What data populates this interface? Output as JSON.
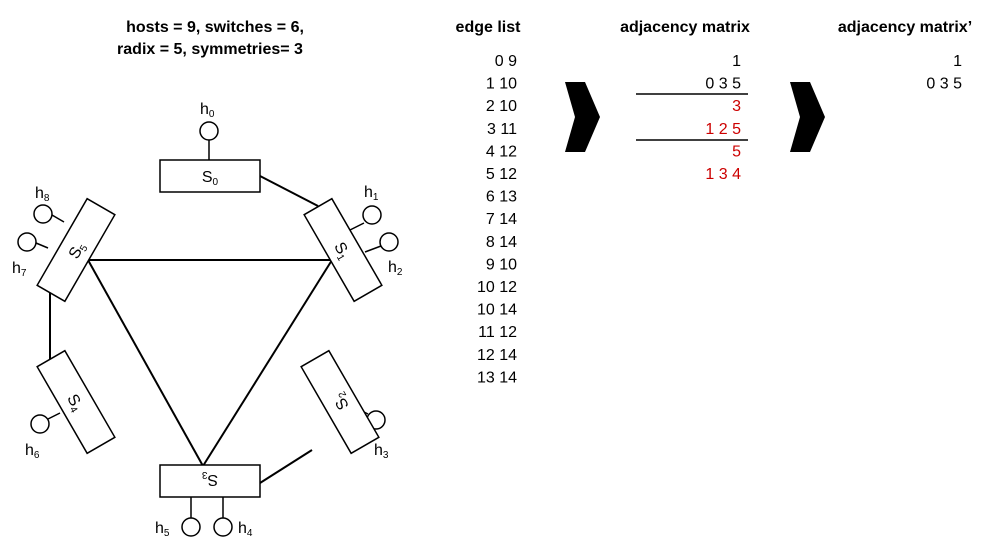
{
  "title": {
    "line1": "hosts = 9, switches = 6,",
    "line2": "radix = 5, symmetries= 3"
  },
  "topology": {
    "switches": [
      {
        "id": "S0",
        "base": "S",
        "sub": "0"
      },
      {
        "id": "S1",
        "base": "S",
        "sub": "1"
      },
      {
        "id": "S2",
        "base": "S",
        "sub": "2"
      },
      {
        "id": "S3",
        "base": "S",
        "sub": "3"
      },
      {
        "id": "S4",
        "base": "S",
        "sub": "4"
      },
      {
        "id": "S5",
        "base": "S",
        "sub": "5"
      }
    ],
    "hosts": [
      {
        "id": "h0",
        "base": "h",
        "sub": "0"
      },
      {
        "id": "h1",
        "base": "h",
        "sub": "1"
      },
      {
        "id": "h2",
        "base": "h",
        "sub": "2"
      },
      {
        "id": "h3",
        "base": "h",
        "sub": "3"
      },
      {
        "id": "h4",
        "base": "h",
        "sub": "4"
      },
      {
        "id": "h5",
        "base": "h",
        "sub": "5"
      },
      {
        "id": "h6",
        "base": "h",
        "sub": "6"
      },
      {
        "id": "h7",
        "base": "h",
        "sub": "7"
      },
      {
        "id": "h8",
        "base": "h",
        "sub": "8"
      }
    ],
    "switch_links": [
      [
        "S0",
        "S1"
      ],
      [
        "S1",
        "S5"
      ],
      [
        "S5",
        "S3"
      ],
      [
        "S3",
        "S1"
      ],
      [
        "S5",
        "S4"
      ],
      [
        "S3",
        "S2"
      ]
    ],
    "host_links": [
      [
        "h0",
        "S0"
      ],
      [
        "h1",
        "S1"
      ],
      [
        "h2",
        "S1"
      ],
      [
        "h3",
        "S2"
      ],
      [
        "h4",
        "S3"
      ],
      [
        "h5",
        "S3"
      ],
      [
        "h6",
        "S4"
      ],
      [
        "h7",
        "S5"
      ],
      [
        "h8",
        "S5"
      ]
    ]
  },
  "edge_list": {
    "header": "edge list",
    "rows": [
      "0 9",
      "1 10",
      "2 10",
      "3 11",
      "4 12",
      "5 12",
      "6 13",
      "7 14",
      "8 14",
      "9 10",
      "10 12",
      "10 14",
      "11 12",
      "12 14",
      "13 14"
    ]
  },
  "adjacency_matrix": {
    "header": "adjacency matrix",
    "rows": [
      {
        "text": "1",
        "color": "#000000"
      },
      {
        "text": "0 3 5",
        "color": "#000000"
      },
      {
        "text": "3",
        "color": "#cc0000"
      },
      {
        "text": "1 2 5",
        "color": "#cc0000"
      },
      {
        "text": "5",
        "color": "#cc0000"
      },
      {
        "text": "1 3 4",
        "color": "#cc0000"
      }
    ]
  },
  "adjacency_matrix_prime": {
    "header": "adjacency matrix’",
    "rows": [
      {
        "text": "1",
        "color": "#000000"
      },
      {
        "text": "0 3 5",
        "color": "#000000"
      }
    ]
  },
  "arrows": [
    {
      "name": "arrow-right-icon"
    },
    {
      "name": "arrow-right-icon"
    }
  ],
  "colors": {
    "line": "#000000",
    "highlight": "#cc0000",
    "background": "#ffffff"
  }
}
